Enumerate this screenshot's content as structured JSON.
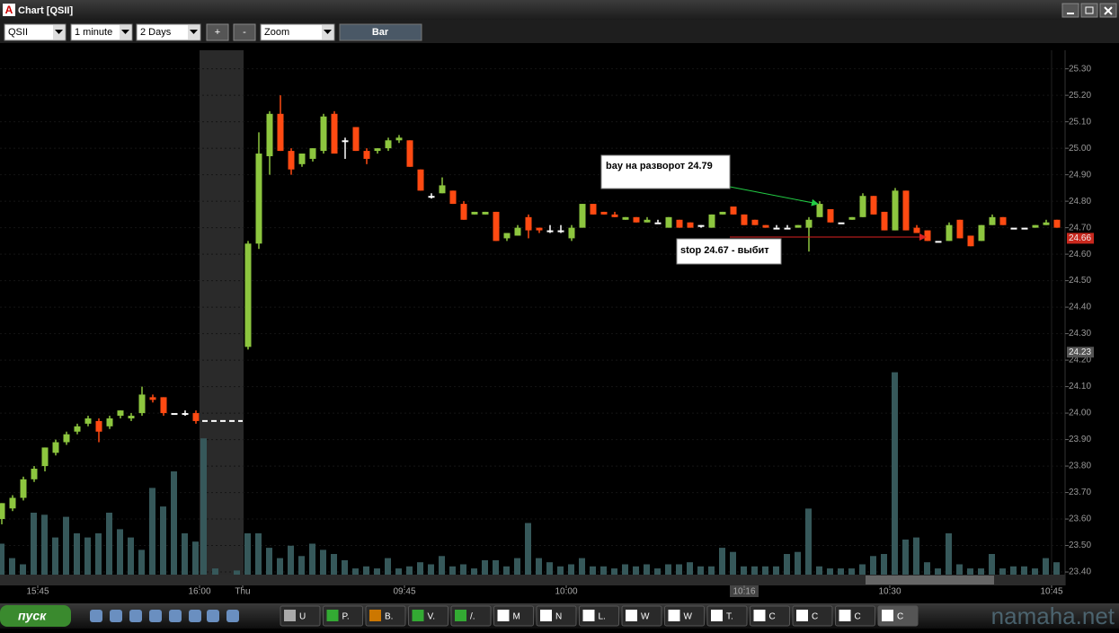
{
  "window": {
    "title": "Chart [QSII]"
  },
  "toolbar": {
    "symbol": "QSII",
    "interval": "1 minute",
    "range": "2 Days",
    "zoom_in": "+",
    "zoom_out": "-",
    "mode": "Zoom",
    "style": "Bar"
  },
  "chart": {
    "type": "candlestick",
    "ylim": [
      23.39,
      25.37
    ],
    "yticks": [
      {
        "value": 25.3,
        "label": "25.30"
      },
      {
        "value": 25.2,
        "label": "25.20"
      },
      {
        "value": 25.1,
        "label": "25.10"
      },
      {
        "value": 25.0,
        "label": "25.00"
      },
      {
        "value": 24.9,
        "label": "24.90"
      },
      {
        "value": 24.8,
        "label": "24.80"
      },
      {
        "value": 24.7,
        "label": "24.70"
      },
      {
        "value": 24.6,
        "label": "24.60"
      },
      {
        "value": 24.5,
        "label": "24.50"
      },
      {
        "value": 24.4,
        "label": "24.40"
      },
      {
        "value": 24.3,
        "label": "24.30"
      },
      {
        "value": 24.2,
        "label": "24.20"
      },
      {
        "value": 24.1,
        "label": "24.10"
      },
      {
        "value": 24.0,
        "label": "24.00"
      },
      {
        "value": 23.9,
        "label": "23.90"
      },
      {
        "value": 23.8,
        "label": "23.80"
      },
      {
        "value": 23.7,
        "label": "23.70"
      },
      {
        "value": 23.6,
        "label": "23.60"
      },
      {
        "value": 23.5,
        "label": "23.50"
      },
      {
        "value": 23.4,
        "label": "23.40"
      }
    ],
    "xticks": [
      "15:45",
      "16:00",
      "Thu",
      "09:45",
      "10:00",
      "10:16",
      "10:30",
      "10:45"
    ],
    "up_color": "#8dc63f",
    "down_color": "#ff4a12",
    "flat_color": "#ffffff",
    "volume_color": "#36585a",
    "vlim": [
      0,
      100
    ],
    "sessions": [
      {
        "candles": [
          [
            23.6,
            23.66,
            23.58,
            23.66
          ],
          [
            23.64,
            23.69,
            23.63,
            23.68
          ],
          [
            23.68,
            23.76,
            23.67,
            23.75
          ],
          [
            23.75,
            23.8,
            23.74,
            23.79
          ],
          [
            23.8,
            23.87,
            23.78,
            23.87
          ],
          [
            23.85,
            23.9,
            23.84,
            23.89
          ],
          [
            23.89,
            23.93,
            23.88,
            23.92
          ],
          [
            23.93,
            23.96,
            23.92,
            23.95
          ],
          [
            23.96,
            23.99,
            23.95,
            23.98
          ],
          [
            23.97,
            23.98,
            23.89,
            23.93
          ],
          [
            23.95,
            23.99,
            23.94,
            23.98
          ],
          [
            23.99,
            24.01,
            23.98,
            24.01
          ],
          [
            23.98,
            24.0,
            23.97,
            23.99
          ],
          [
            24.0,
            24.1,
            23.99,
            24.07
          ],
          [
            24.06,
            24.07,
            24.04,
            24.05
          ],
          [
            24.06,
            24.06,
            23.99,
            24.0
          ],
          [
            24.0,
            24.0,
            24.0,
            24.0
          ],
          [
            24.0,
            24.01,
            23.99,
            24.0
          ],
          [
            24.0,
            24.01,
            23.96,
            23.97
          ]
        ],
        "volumes": [
          15,
          8,
          5,
          30,
          29,
          18,
          28,
          20,
          18,
          20,
          30,
          22,
          18,
          12,
          42,
          33,
          50,
          20,
          16
        ]
      },
      {
        "candles": [
          [
            24.25,
            24.65,
            24.24,
            24.64
          ],
          [
            24.64,
            25.06,
            24.62,
            24.98
          ],
          [
            24.97,
            25.14,
            24.9,
            25.13
          ],
          [
            25.13,
            25.2,
            24.99,
            24.99
          ],
          [
            24.99,
            25.0,
            24.9,
            24.92
          ],
          [
            24.94,
            24.98,
            24.93,
            24.98
          ],
          [
            24.96,
            25.0,
            24.95,
            25.0
          ],
          [
            24.99,
            25.13,
            24.98,
            25.12
          ],
          [
            25.13,
            25.14,
            24.98,
            24.98
          ],
          [
            25.03,
            25.04,
            24.96,
            25.03
          ],
          [
            25.08,
            25.08,
            24.99,
            24.99
          ],
          [
            24.99,
            25.0,
            24.94,
            24.96
          ],
          [
            24.99,
            25.0,
            24.98,
            25.0
          ],
          [
            25.0,
            25.04,
            24.99,
            25.03
          ],
          [
            25.03,
            25.05,
            25.02,
            25.04
          ],
          [
            25.03,
            25.03,
            24.93,
            24.93
          ],
          [
            24.92,
            24.92,
            24.84,
            24.84
          ],
          [
            24.82,
            24.83,
            24.81,
            24.82
          ],
          [
            24.83,
            24.89,
            24.83,
            24.86
          ],
          [
            24.84,
            24.84,
            24.79,
            24.79
          ],
          [
            24.79,
            24.8,
            24.73,
            24.73
          ],
          [
            24.75,
            24.76,
            24.75,
            24.76
          ],
          [
            24.75,
            24.76,
            24.75,
            24.76
          ],
          [
            24.76,
            24.76,
            24.65,
            24.65
          ],
          [
            24.66,
            24.68,
            24.65,
            24.68
          ],
          [
            24.67,
            24.71,
            24.67,
            24.7
          ],
          [
            24.74,
            24.75,
            24.66,
            24.69
          ],
          [
            24.7,
            24.7,
            24.68,
            24.69
          ],
          [
            24.69,
            24.71,
            24.68,
            24.69
          ],
          [
            24.69,
            24.71,
            24.68,
            24.69
          ],
          [
            24.66,
            24.71,
            24.65,
            24.7
          ],
          [
            24.7,
            24.79,
            24.7,
            24.79
          ],
          [
            24.79,
            24.79,
            24.75,
            24.75
          ],
          [
            24.76,
            24.76,
            24.75,
            24.75
          ],
          [
            24.75,
            24.76,
            24.74,
            24.74
          ],
          [
            24.73,
            24.74,
            24.73,
            24.74
          ],
          [
            24.74,
            24.74,
            24.72,
            24.72
          ],
          [
            24.72,
            24.74,
            24.72,
            24.73
          ],
          [
            24.72,
            24.73,
            24.72,
            24.72
          ],
          [
            24.7,
            24.74,
            24.7,
            24.74
          ],
          [
            24.73,
            24.73,
            24.7,
            24.7
          ],
          [
            24.72,
            24.72,
            24.7,
            24.7
          ],
          [
            24.71,
            24.71,
            24.7,
            24.71
          ],
          [
            24.7,
            24.75,
            24.7,
            24.75
          ],
          [
            24.75,
            24.76,
            24.75,
            24.76
          ],
          [
            24.78,
            24.78,
            24.75,
            24.75
          ],
          [
            24.75,
            24.75,
            24.71,
            24.71
          ],
          [
            24.73,
            24.73,
            24.71,
            24.71
          ],
          [
            24.71,
            24.71,
            24.7,
            24.7
          ],
          [
            24.7,
            24.71,
            24.7,
            24.7
          ],
          [
            24.7,
            24.71,
            24.7,
            24.7
          ],
          [
            24.7,
            24.71,
            24.7,
            24.71
          ],
          [
            24.7,
            24.74,
            24.61,
            24.73
          ],
          [
            24.74,
            24.8,
            24.74,
            24.79
          ],
          [
            24.77,
            24.77,
            24.72,
            24.72
          ],
          [
            24.72,
            24.72,
            24.72,
            24.72
          ],
          [
            24.73,
            24.74,
            24.73,
            24.74
          ],
          [
            24.74,
            24.83,
            24.74,
            24.82
          ],
          [
            24.82,
            24.82,
            24.75,
            24.75
          ],
          [
            24.76,
            24.76,
            24.69,
            24.69
          ],
          [
            24.69,
            24.85,
            24.69,
            24.84
          ],
          [
            24.84,
            24.84,
            24.69,
            24.69
          ],
          [
            24.7,
            24.71,
            24.68,
            24.68
          ],
          [
            24.69,
            24.69,
            24.65,
            24.65
          ],
          [
            24.65,
            24.65,
            24.65,
            24.65
          ],
          [
            24.65,
            24.72,
            24.65,
            24.71
          ],
          [
            24.73,
            24.73,
            24.66,
            24.66
          ],
          [
            24.67,
            24.67,
            24.63,
            24.63
          ],
          [
            24.65,
            24.71,
            24.65,
            24.71
          ],
          [
            24.71,
            24.75,
            24.71,
            24.74
          ],
          [
            24.74,
            24.74,
            24.71,
            24.71
          ],
          [
            24.7,
            24.7,
            24.7,
            24.7
          ],
          [
            24.7,
            24.7,
            24.7,
            24.7
          ],
          [
            24.7,
            24.71,
            24.7,
            24.71
          ],
          [
            24.71,
            24.73,
            24.71,
            24.72
          ],
          [
            24.73,
            24.73,
            24.7,
            24.7
          ]
        ],
        "volumes": [
          20,
          20,
          13,
          8,
          14,
          9,
          15,
          12,
          10,
          7,
          3,
          4,
          3,
          8,
          3,
          4,
          6,
          5,
          9,
          4,
          5,
          3,
          7,
          7,
          4,
          8,
          25,
          8,
          6,
          4,
          5,
          8,
          4,
          4,
          3,
          5,
          4,
          5,
          3,
          5,
          5,
          6,
          4,
          4,
          13,
          11,
          4,
          4,
          4,
          4,
          10,
          11,
          32,
          4,
          3,
          3,
          3,
          5,
          9,
          10,
          98,
          17,
          18,
          6,
          3,
          20,
          5,
          3,
          3,
          10,
          3,
          4,
          4,
          3,
          8,
          6
        ]
      }
    ],
    "after_hours_volumes": [
      66,
      3,
      2
    ],
    "after_hours_level": 23.97,
    "price_markers": [
      {
        "value": 24.66,
        "color": "#c8281e"
      },
      {
        "value": 24.23,
        "color": "#555555"
      }
    ],
    "annotations": [
      "bay на разворот 24.79",
      "stop 24.67 - выбит"
    ]
  },
  "taskbar": {
    "start": "пуск",
    "tasks": [
      "U",
      "P.",
      "B.",
      "V.",
      "/.",
      "M",
      "N",
      "L.",
      "W",
      "W",
      "T.",
      "C",
      "C",
      "C",
      "C"
    ]
  },
  "watermark": "namaha.net"
}
